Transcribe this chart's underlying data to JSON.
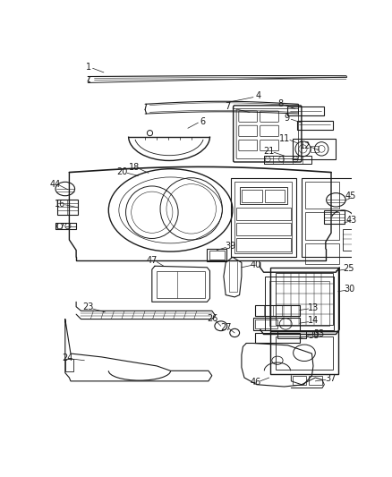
{
  "background_color": "#ffffff",
  "line_color": "#1a1a1a",
  "fig_width": 4.38,
  "fig_height": 5.33,
  "dpi": 100,
  "label_fontsize": 7.0,
  "lw_main": 0.7,
  "lw_thick": 1.0,
  "lw_thin": 0.4
}
